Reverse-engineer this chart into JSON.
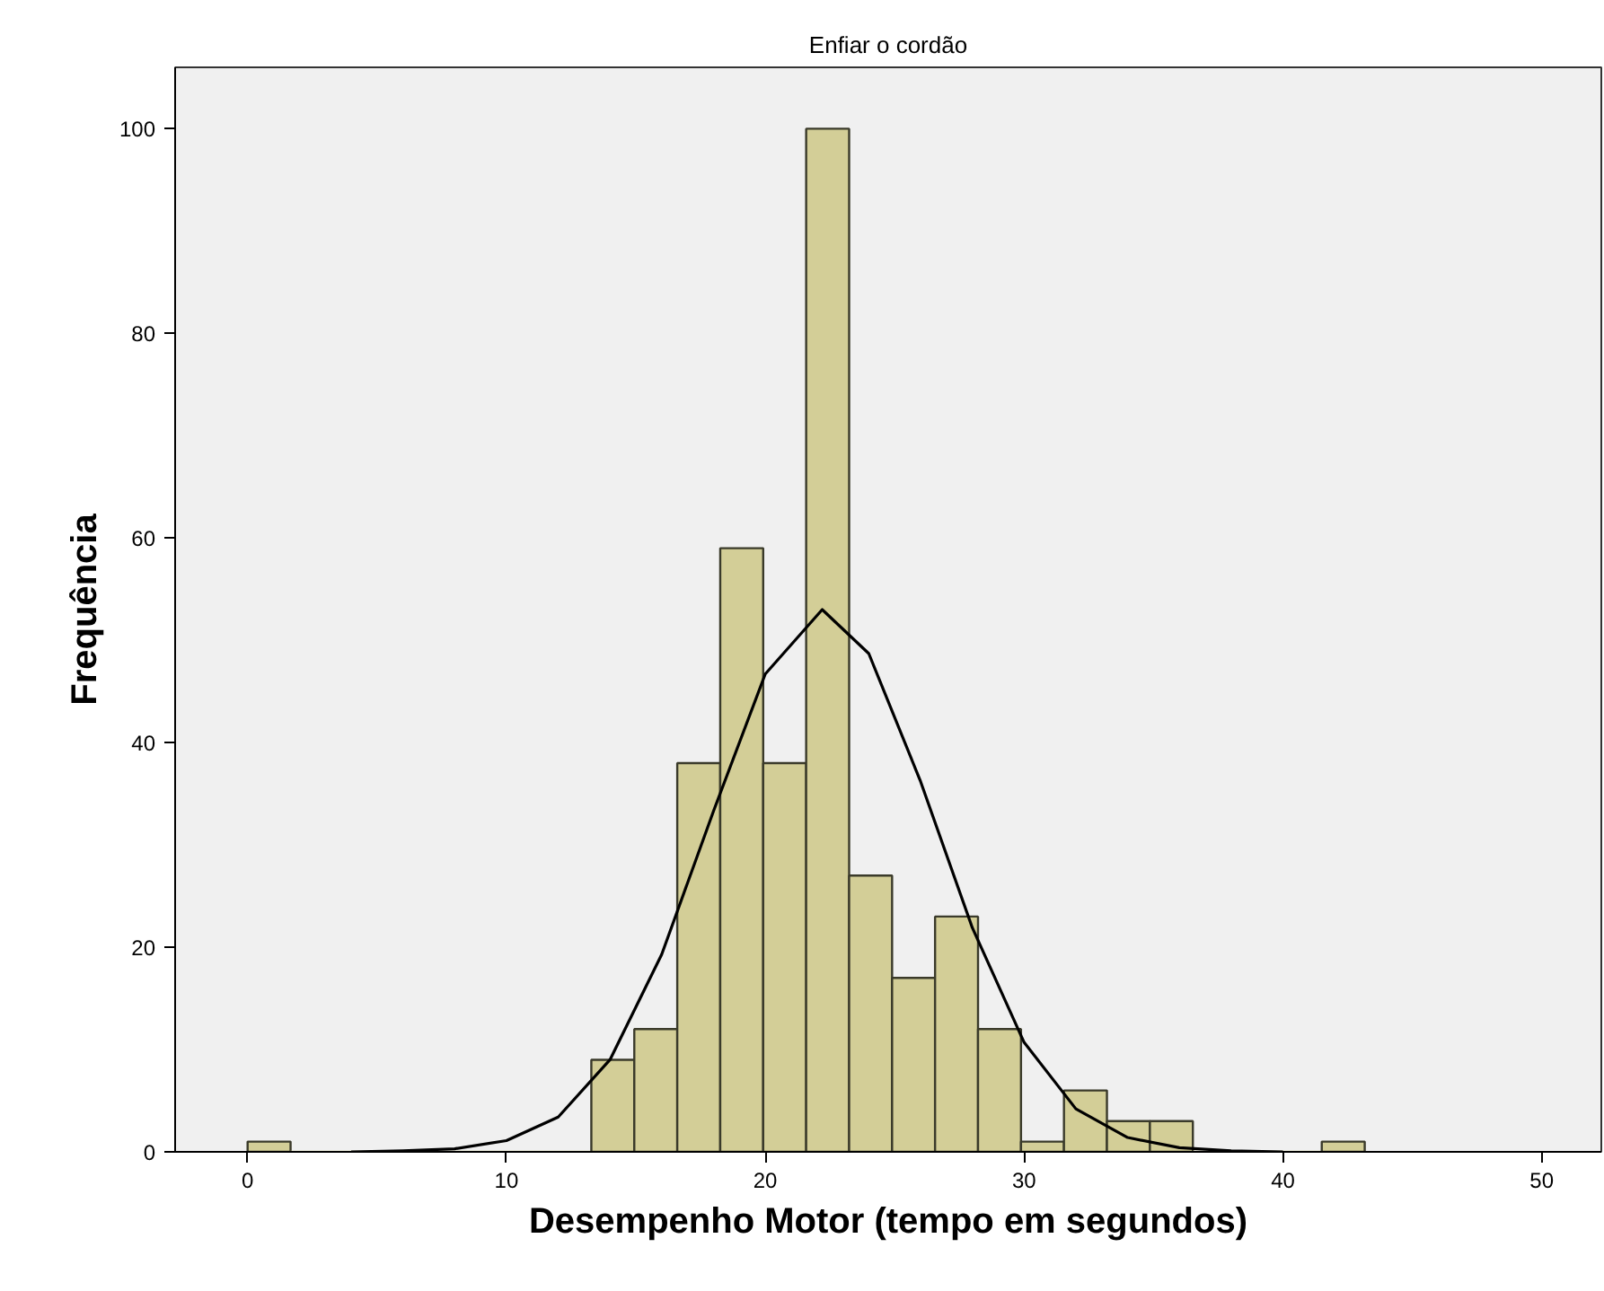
{
  "chart_data": {
    "type": "histogram",
    "title": "Enfiar o cordão",
    "xlabel": "Desempenho Motor (tempo em segundos)",
    "ylabel": "Frequência",
    "bins": [
      0,
      1.66,
      3.32,
      4.98,
      6.64,
      8.3,
      9.96,
      11.62,
      13.28,
      14.94,
      16.6,
      18.26,
      19.92,
      21.58,
      23.24,
      24.9,
      26.56,
      28.22,
      29.88,
      31.54,
      33.2,
      34.86,
      36.52,
      38.18,
      39.84,
      41.5,
      43.16
    ],
    "values": [
      1,
      0,
      0,
      0,
      0,
      0,
      0,
      0,
      9,
      12,
      38,
      59,
      38,
      100,
      27,
      17,
      23,
      12,
      1,
      6,
      3,
      3,
      0,
      0,
      0,
      1
    ],
    "color": "#d3ce97",
    "series": [
      {
        "type": "line",
        "color": "#000000",
        "x": [
          4,
          6,
          8,
          10,
          12,
          14,
          16,
          18,
          20,
          22.2,
          24,
          26,
          28,
          30,
          32,
          34,
          36,
          38,
          40
        ],
        "values": [
          0,
          0.1,
          0.3,
          1.1,
          3.4,
          9,
          19.3,
          33.3,
          46.7,
          53,
          48.7,
          36.2,
          21.9,
          10.7,
          4.2,
          1.4,
          0.4,
          0.1,
          0
        ]
      }
    ],
    "xlim": [
      -2.8,
      52.3
    ],
    "ylim": [
      0,
      106
    ],
    "xticks": [
      0,
      10,
      20,
      30,
      40,
      50
    ],
    "yticks": [
      0,
      20,
      40,
      60,
      80,
      100
    ]
  }
}
